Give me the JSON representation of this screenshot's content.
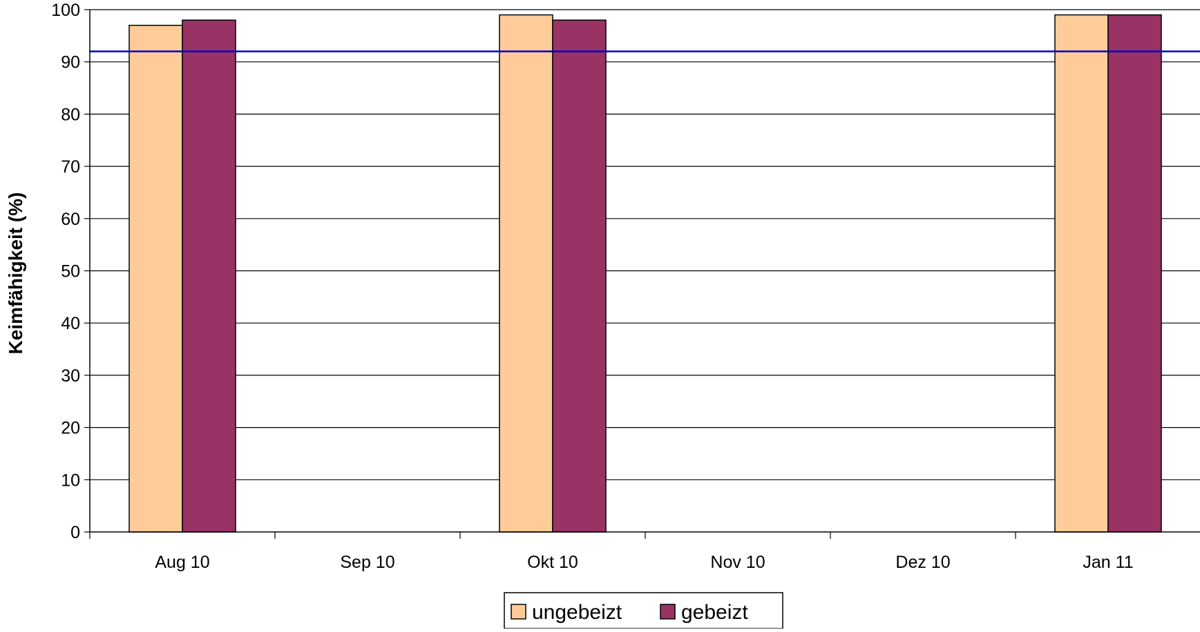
{
  "chart_data": {
    "type": "bar",
    "title": "",
    "xlabel": "",
    "ylabel": "Keimfähigkeit (%)",
    "ylim": [
      0,
      100
    ],
    "yticks": [
      "0",
      "10",
      "20",
      "30",
      "40",
      "50",
      "60",
      "70",
      "80",
      "90",
      "100"
    ],
    "categories": [
      "Aug 10",
      "Sep 10",
      "Okt 10",
      "Nov 10",
      "Dez 10",
      "Jan 11"
    ],
    "series": [
      {
        "name": "ungebeizt",
        "color": "#FFCC99",
        "values": [
          97,
          null,
          99,
          null,
          null,
          99
        ]
      },
      {
        "name": "gebeizt",
        "color": "#993366",
        "values": [
          98,
          null,
          98,
          null,
          null,
          99
        ]
      }
    ],
    "reference_line": {
      "value": 92,
      "color": "#0000CC"
    },
    "grid": true,
    "legend_position": "bottom"
  }
}
